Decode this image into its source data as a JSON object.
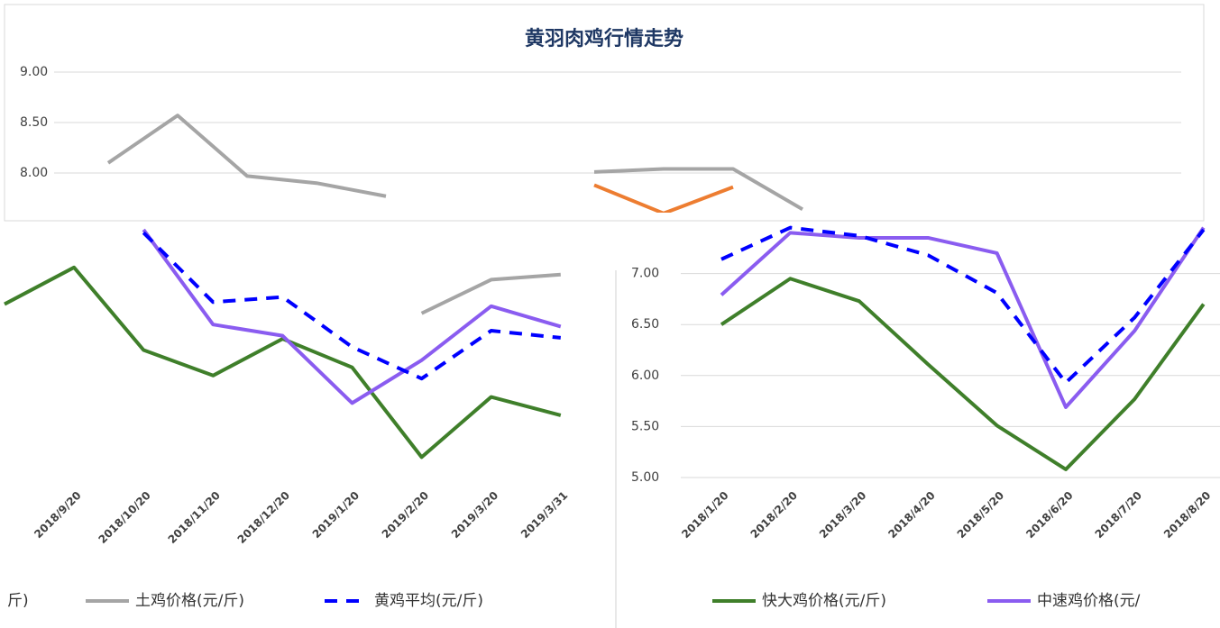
{
  "chart_data": [
    {
      "type": "line",
      "title": "黄羽肉鸡行情走势",
      "categories": [
        null,
        null,
        null,
        null,
        null,
        null,
        null,
        null,
        null,
        null,
        null,
        null,
        null,
        null,
        null,
        null
      ],
      "ylim": [
        7.5,
        9
      ],
      "yticks": [
        {
          "value": 8,
          "label": "8.00"
        },
        {
          "value": 8.5,
          "label": "8.50"
        },
        {
          "value": 9,
          "label": "9.00"
        }
      ],
      "grid": true,
      "series": [
        {
          "color": "#a5a5a5",
          "values": [
            8.1,
            8.57,
            7.97,
            7.9,
            7.77,
            null,
            null,
            8.01,
            8.04,
            8.04,
            7.64,
            null,
            null,
            null,
            null,
            null
          ]
        },
        {
          "color": "#ed7d31",
          "values": [
            null,
            null,
            null,
            null,
            null,
            null,
            null,
            7.88,
            7.6,
            7.86,
            null,
            null,
            null,
            null,
            null,
            null
          ]
        }
      ]
    },
    {
      "type": "line",
      "categories": [
        null,
        "2018/9/20",
        "2018/10/20",
        "2018/11/20",
        "2018/12/20",
        "2019/1/20",
        "2019/2/20",
        "2019/3/20",
        "2019/3/31"
      ],
      "ylim": [
        5,
        7.5
      ],
      "legend_fragment": "斤)",
      "series": [
        {
          "color": "#3f7f2a",
          "values": [
            6.7,
            7.06,
            6.25,
            6.0,
            6.36,
            6.08,
            5.2,
            5.79,
            5.61
          ]
        },
        {
          "color": "#8a5cf0",
          "values": [
            null,
            null,
            7.43,
            6.5,
            6.39,
            5.73,
            6.15,
            6.68,
            6.48
          ]
        },
        {
          "name": "土鸡价格(元/斤)",
          "color": "#a5a5a5",
          "values": [
            null,
            null,
            null,
            null,
            null,
            null,
            6.61,
            6.94,
            6.99
          ]
        },
        {
          "name": "黄鸡平均(元/斤)",
          "color": "#0000ff",
          "dashed": true,
          "values": [
            null,
            null,
            7.4,
            6.72,
            6.77,
            6.28,
            5.97,
            6.44,
            6.37
          ]
        }
      ]
    },
    {
      "type": "line",
      "categories": [
        "2018/1/20",
        "2018/2/20",
        "2018/3/20",
        "2018/4/20",
        "2018/5/20",
        "2018/6/20",
        "2018/7/20",
        "2018/8/20"
      ],
      "ylim": [
        5,
        7.5
      ],
      "yticks": [
        {
          "value": 5,
          "label": "5.00"
        },
        {
          "value": 5.5,
          "label": "5.50"
        },
        {
          "value": 6,
          "label": "6.00"
        },
        {
          "value": 6.5,
          "label": "6.50"
        },
        {
          "value": 7,
          "label": "7.00"
        }
      ],
      "grid": true,
      "series": [
        {
          "name": "快大鸡价格(元/斤)",
          "color": "#3f7f2a",
          "values": [
            6.5,
            6.95,
            6.73,
            6.11,
            5.51,
            5.08,
            5.77,
            6.7
          ]
        },
        {
          "name": "中速鸡价格(元/",
          "color": "#8a5cf0",
          "values": [
            6.79,
            7.4,
            7.35,
            7.35,
            7.2,
            5.69,
            6.44,
            7.45
          ]
        },
        {
          "color": "#0000ff",
          "dashed": true,
          "values": [
            7.14,
            7.45,
            7.37,
            7.18,
            6.81,
            5.93,
            6.57,
            7.43
          ]
        }
      ]
    }
  ]
}
